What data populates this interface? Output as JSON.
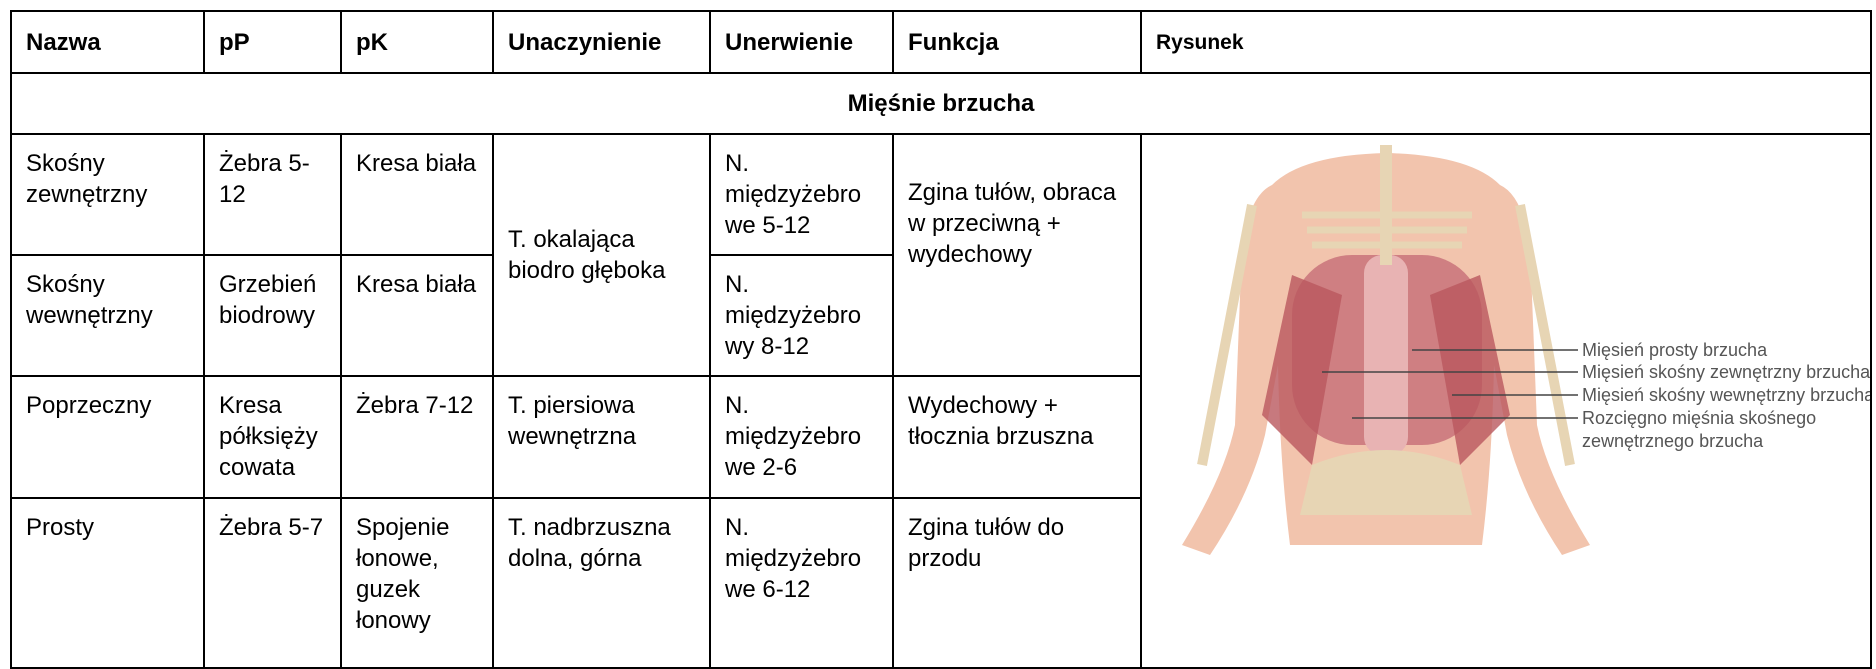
{
  "table": {
    "header": [
      "Nazwa",
      "pP",
      "pK",
      "Unaczynienie",
      "Unerwienie",
      "Funkcja",
      "Rysunek"
    ],
    "section": "Mięśnie brzucha",
    "rows": [
      [
        "Skośny zewnętrzny",
        "Żebra 5-12",
        "Kresa biała",
        "T. okalająca biodro głęboka",
        "N. międzyżebrowe 5-12",
        "Zgina tułów, obraca w przeciwną + wydechowy"
      ],
      [
        "Skośny wewnętrzny",
        "Grzebień biodrowy",
        "Kresa biała",
        "N. międzyżebrowy 8-12"
      ],
      [
        "Poprzeczny",
        "Kresa półksiężycowata",
        "Żebra 7-12",
        "T. piersiowa wewnętrzna",
        "N. międzyżebrowe 2-6",
        "Wydechowy + tłocznia brzuszna"
      ],
      [
        "Prosty",
        "Żebra 5-7",
        "Spojenie łonowe, guzek łonowy",
        "T. nadbrzuszna dolna, górna",
        "N. międzyżebrowe 6-12",
        "Zgina tułów do przodu"
      ]
    ]
  },
  "figure": {
    "labels": [
      "Mięsień prosty brzucha",
      "Mięsień skośny zewnętrzny brzucha",
      "Mięsień skośny wewnętrzny brzucha",
      "Rozcięgno mięśnia skośnego",
      "zewnętrznego brzucha"
    ]
  }
}
